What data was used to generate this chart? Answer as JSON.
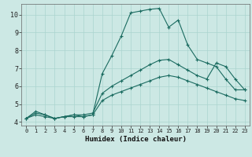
{
  "xlabel": "Humidex (Indice chaleur)",
  "bg_color": "#cce8e4",
  "line_color": "#1a6b60",
  "grid_color": "#aad4cf",
  "spine_color": "#666666",
  "xlim": [
    -0.5,
    23.5
  ],
  "ylim": [
    3.8,
    10.6
  ],
  "yticks": [
    4,
    5,
    6,
    7,
    8,
    9,
    10
  ],
  "xticks": [
    0,
    1,
    2,
    3,
    4,
    5,
    6,
    7,
    8,
    9,
    10,
    11,
    12,
    13,
    14,
    15,
    16,
    17,
    18,
    19,
    20,
    21,
    22,
    23
  ],
  "series1_x": [
    0,
    1,
    2,
    3,
    4,
    5,
    6,
    7,
    8,
    9,
    10,
    11,
    12,
    13,
    14,
    15,
    16,
    17,
    18,
    19,
    20,
    21,
    22,
    23
  ],
  "series1_y": [
    4.2,
    4.6,
    4.4,
    4.2,
    4.3,
    4.4,
    4.3,
    4.4,
    6.7,
    7.7,
    8.8,
    10.1,
    10.2,
    10.3,
    10.35,
    9.3,
    9.7,
    8.3,
    7.5,
    7.3,
    7.1,
    6.4,
    5.8,
    5.8
  ],
  "series2_x": [
    0,
    1,
    2,
    3,
    4,
    5,
    6,
    7,
    8,
    9,
    10,
    11,
    12,
    13,
    14,
    15,
    16,
    17,
    18,
    19,
    20,
    21,
    22,
    23
  ],
  "series2_y": [
    4.2,
    4.5,
    4.4,
    4.2,
    4.3,
    4.4,
    4.4,
    4.5,
    5.6,
    6.0,
    6.3,
    6.6,
    6.9,
    7.2,
    7.45,
    7.5,
    7.2,
    6.9,
    6.6,
    6.4,
    7.3,
    7.1,
    6.4,
    5.8
  ],
  "series3_x": [
    0,
    1,
    2,
    3,
    4,
    5,
    6,
    7,
    8,
    9,
    10,
    11,
    12,
    13,
    14,
    15,
    16,
    17,
    18,
    19,
    20,
    21,
    22,
    23
  ],
  "series3_y": [
    4.2,
    4.4,
    4.3,
    4.2,
    4.3,
    4.3,
    4.3,
    4.4,
    5.2,
    5.5,
    5.7,
    5.9,
    6.1,
    6.3,
    6.5,
    6.6,
    6.5,
    6.3,
    6.1,
    5.9,
    5.7,
    5.5,
    5.3,
    5.2
  ]
}
